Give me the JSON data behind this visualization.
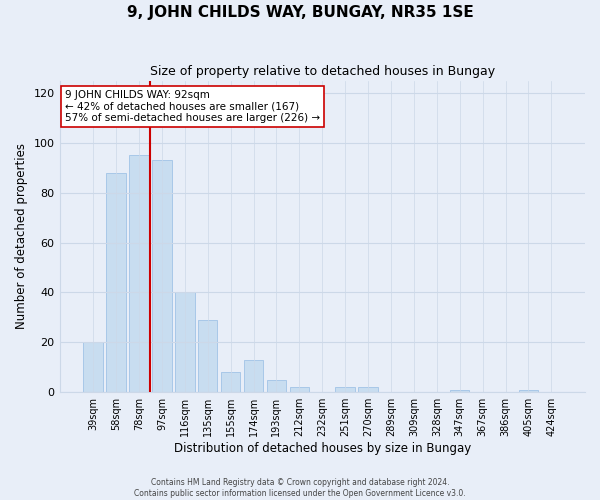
{
  "title": "9, JOHN CHILDS WAY, BUNGAY, NR35 1SE",
  "subtitle": "Size of property relative to detached houses in Bungay",
  "xlabel": "Distribution of detached houses by size in Bungay",
  "ylabel": "Number of detached properties",
  "bar_labels": [
    "39sqm",
    "58sqm",
    "78sqm",
    "97sqm",
    "116sqm",
    "135sqm",
    "155sqm",
    "174sqm",
    "193sqm",
    "212sqm",
    "232sqm",
    "251sqm",
    "270sqm",
    "289sqm",
    "309sqm",
    "328sqm",
    "347sqm",
    "367sqm",
    "386sqm",
    "405sqm",
    "424sqm"
  ],
  "bar_values": [
    20,
    88,
    95,
    93,
    40,
    29,
    8,
    13,
    5,
    2,
    0,
    2,
    2,
    0,
    0,
    0,
    1,
    0,
    0,
    1,
    0
  ],
  "bar_color": "#c8ddf0",
  "bar_edge_color": "#a8c8e8",
  "vline_color": "#cc0000",
  "annotation_line1": "9 JOHN CHILDS WAY: 92sqm",
  "annotation_line2": "← 42% of detached houses are smaller (167)",
  "annotation_line3": "57% of semi-detached houses are larger (226) →",
  "annotation_box_color": "#ffffff",
  "annotation_box_edge": "#cc0000",
  "ylim": [
    0,
    125
  ],
  "yticks": [
    0,
    20,
    40,
    60,
    80,
    100,
    120
  ],
  "grid_color": "#ccd8e8",
  "bg_color": "#e8eef8",
  "footnote1": "Contains HM Land Registry data © Crown copyright and database right 2024.",
  "footnote2": "Contains public sector information licensed under the Open Government Licence v3.0."
}
